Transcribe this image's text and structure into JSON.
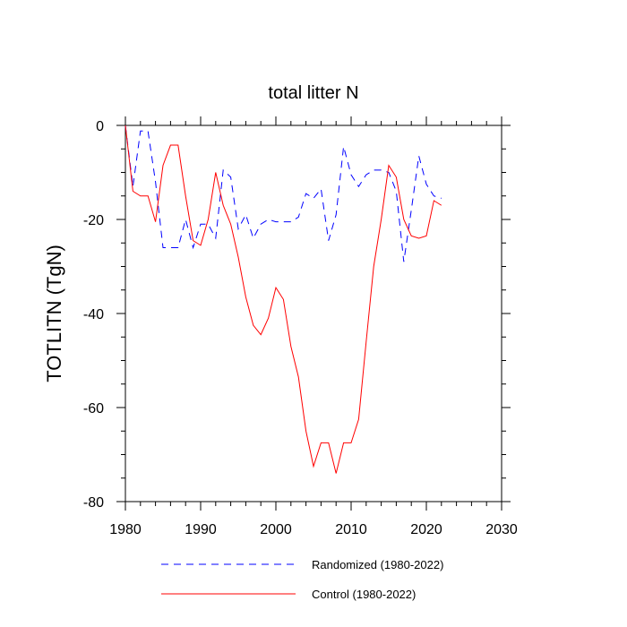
{
  "chart_data": {
    "type": "line",
    "title": "total litter N",
    "xlabel": "",
    "ylabel": "TOTLITN  (TgN)",
    "xlim": [
      1980,
      2030
    ],
    "ylim": [
      -80,
      0
    ],
    "x_ticks": [
      1980,
      1990,
      2000,
      2010,
      2020,
      2030
    ],
    "y_ticks": [
      0,
      -20,
      -40,
      -60,
      -80
    ],
    "grid": false,
    "legend_position": "bottom",
    "x": [
      1980,
      1981,
      1982,
      1983,
      1984,
      1985,
      1986,
      1987,
      1988,
      1989,
      1990,
      1991,
      1992,
      1993,
      1994,
      1995,
      1996,
      1997,
      1998,
      1999,
      2000,
      2001,
      2002,
      2003,
      2004,
      2005,
      2006,
      2007,
      2008,
      2009,
      2010,
      2011,
      2012,
      2013,
      2014,
      2015,
      2016,
      2017,
      2018,
      2019,
      2020,
      2021,
      2022
    ],
    "series": [
      {
        "name": "Randomized (1980-2022)",
        "color": "#0000ff",
        "style": "dashed",
        "values": [
          0,
          -13,
          -1.2,
          -1.2,
          -12,
          -26,
          -26,
          -26,
          -20,
          -26,
          -21,
          -21,
          -24,
          -9.5,
          -11,
          -22,
          -19,
          -24,
          -21,
          -20,
          -20.5,
          -20.5,
          -20.5,
          -19.5,
          -14.5,
          -15.5,
          -13.5,
          -24.5,
          -19,
          -4.5,
          -10.5,
          -13,
          -10.5,
          -9.5,
          -9.5,
          -10,
          -14,
          -29,
          -18,
          -6.5,
          -12.5,
          -15,
          -15.5
        ]
      },
      {
        "name": "Control (1980-2022)",
        "color": "#ff0000",
        "style": "solid",
        "values": [
          0,
          -14,
          -15,
          -15,
          -20.5,
          -8.5,
          -4.2,
          -4.2,
          -15,
          -24.5,
          -25.5,
          -20,
          -10,
          -17,
          -21,
          -28,
          -36.5,
          -42.5,
          -44.5,
          -41,
          -34.5,
          -37,
          -47,
          -53.5,
          -65,
          -72.5,
          -67.5,
          -67.5,
          -74,
          -67.5,
          -67.5,
          -62.5,
          -46,
          -30,
          -20,
          -8.5,
          -11,
          -20,
          -23.5,
          -24,
          -23.5,
          -16,
          -17
        ]
      }
    ]
  }
}
